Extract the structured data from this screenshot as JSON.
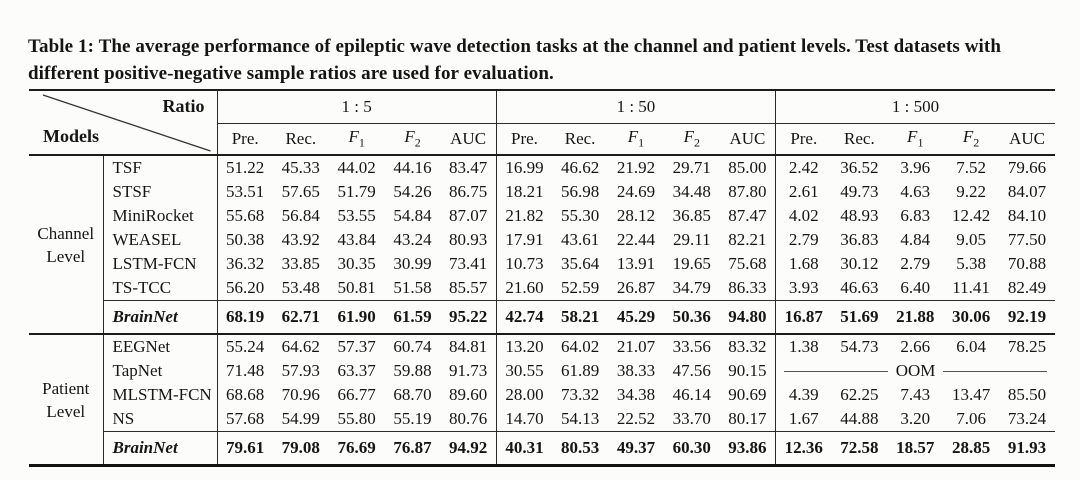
{
  "caption": {
    "label": "Table 1:",
    "text": " The average performance of epileptic wave detection tasks at the channel and patient levels. Test datasets with different positive-negative sample ratios are used for evaluation."
  },
  "table": {
    "corner": {
      "top_right": "Ratio",
      "bottom_left": "Models"
    },
    "ratios": [
      "1 : 5",
      "1 : 50",
      "1 : 500"
    ],
    "metrics": [
      "Pre.",
      "Rec.",
      "F_1",
      "F_2",
      "AUC"
    ],
    "oom_label": "OOM",
    "sections": [
      {
        "label_lines": [
          "Channel",
          "Level"
        ],
        "models": [
          {
            "name": "TSF",
            "blocks": [
              [
                "51.22",
                "45.33",
                "44.02",
                "44.16",
                "83.47"
              ],
              [
                "16.99",
                "46.62",
                "21.92",
                "29.71",
                "85.00"
              ],
              [
                "2.42",
                "36.52",
                "3.96",
                "7.52",
                "79.66"
              ]
            ]
          },
          {
            "name": "STSF",
            "blocks": [
              [
                "53.51",
                "57.65",
                "51.79",
                "54.26",
                "86.75"
              ],
              [
                "18.21",
                "56.98",
                "24.69",
                "34.48",
                "87.80"
              ],
              [
                "2.61",
                "49.73",
                "4.63",
                "9.22",
                "84.07"
              ]
            ]
          },
          {
            "name": "MiniRocket",
            "blocks": [
              [
                "55.68",
                "56.84",
                "53.55",
                "54.84",
                "87.07"
              ],
              [
                "21.82",
                "55.30",
                "28.12",
                "36.85",
                "87.47"
              ],
              [
                "4.02",
                "48.93",
                "6.83",
                "12.42",
                "84.10"
              ]
            ]
          },
          {
            "name": "WEASEL",
            "blocks": [
              [
                "50.38",
                "43.92",
                "43.84",
                "43.24",
                "80.93"
              ],
              [
                "17.91",
                "43.61",
                "22.44",
                "29.11",
                "82.21"
              ],
              [
                "2.79",
                "36.83",
                "4.84",
                "9.05",
                "77.50"
              ]
            ]
          },
          {
            "name": "LSTM-FCN",
            "blocks": [
              [
                "36.32",
                "33.85",
                "30.35",
                "30.99",
                "73.41"
              ],
              [
                "10.73",
                "35.64",
                "13.91",
                "19.65",
                "75.68"
              ],
              [
                "1.68",
                "30.12",
                "2.79",
                "5.38",
                "70.88"
              ]
            ]
          },
          {
            "name": "TS-TCC",
            "blocks": [
              [
                "56.20",
                "53.48",
                "50.81",
                "51.58",
                "85.57"
              ],
              [
                "21.60",
                "52.59",
                "26.87",
                "34.79",
                "86.33"
              ],
              [
                "3.93",
                "46.63",
                "6.40",
                "11.41",
                "82.49"
              ]
            ]
          }
        ],
        "highlight": {
          "name": "BrainNet",
          "blocks": [
            [
              "68.19",
              "62.71",
              "61.90",
              "61.59",
              "95.22"
            ],
            [
              "42.74",
              "58.21",
              "45.29",
              "50.36",
              "94.80"
            ],
            [
              "16.87",
              "51.69",
              "21.88",
              "30.06",
              "92.19"
            ]
          ]
        }
      },
      {
        "label_lines": [
          "Patient",
          "Level"
        ],
        "models": [
          {
            "name": "EEGNet",
            "blocks": [
              [
                "55.24",
                "64.62",
                "57.37",
                "60.74",
                "84.81"
              ],
              [
                "13.20",
                "64.02",
                "21.07",
                "33.56",
                "83.32"
              ],
              [
                "1.38",
                "54.73",
                "2.66",
                "6.04",
                "78.25"
              ]
            ]
          },
          {
            "name": "TapNet",
            "blocks": [
              [
                "71.48",
                "57.93",
                "63.37",
                "59.88",
                "91.73"
              ],
              [
                "30.55",
                "61.89",
                "38.33",
                "47.56",
                "90.15"
              ],
              "OOM"
            ]
          },
          {
            "name": "MLSTM-FCN",
            "blocks": [
              [
                "68.68",
                "70.96",
                "66.77",
                "68.70",
                "89.60"
              ],
              [
                "28.00",
                "73.32",
                "34.38",
                "46.14",
                "90.69"
              ],
              [
                "4.39",
                "62.25",
                "7.43",
                "13.47",
                "85.50"
              ]
            ]
          },
          {
            "name": "NS",
            "blocks": [
              [
                "57.68",
                "54.99",
                "55.80",
                "55.19",
                "80.76"
              ],
              [
                "14.70",
                "54.13",
                "22.52",
                "33.70",
                "80.17"
              ],
              [
                "1.67",
                "44.88",
                "3.20",
                "7.06",
                "73.24"
              ]
            ]
          }
        ],
        "highlight": {
          "name": "BrainNet",
          "blocks": [
            [
              "79.61",
              "79.08",
              "76.69",
              "76.87",
              "94.92"
            ],
            [
              "40.31",
              "80.53",
              "49.37",
              "60.30",
              "93.86"
            ],
            [
              "12.36",
              "72.58",
              "18.57",
              "28.85",
              "91.93"
            ]
          ]
        }
      }
    ]
  }
}
